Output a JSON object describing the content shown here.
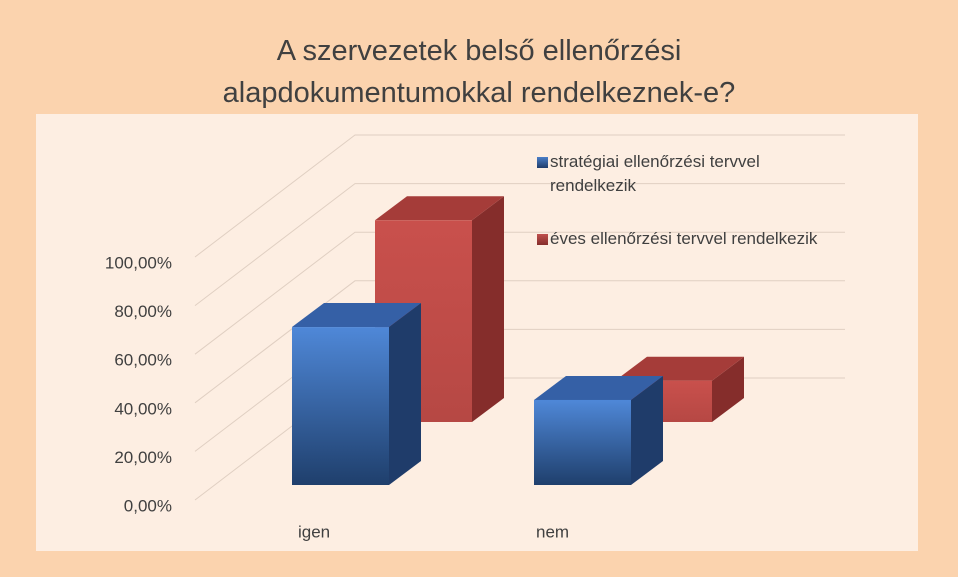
{
  "chart_data": {
    "type": "bar3d",
    "title": "A szervezetek belső ellenőrzési alapdokumentumokkal rendelkeznek-e?",
    "categories": [
      "igen",
      "nem"
    ],
    "series": [
      {
        "name": "stratégiai ellenőrzési tervvel rendelkezik",
        "color": "#4a7ec8",
        "values": [
          65,
          35
        ]
      },
      {
        "name": "éves ellenőrzési tervvel rendelkezik",
        "color": "#c0504d",
        "values": [
          83,
          17
        ]
      }
    ],
    "ylim": [
      0,
      100
    ],
    "yticks": [
      {
        "value": 0,
        "label": "0,00%"
      },
      {
        "value": 20,
        "label": "20,00%"
      },
      {
        "value": 40,
        "label": "40,00%"
      },
      {
        "value": 60,
        "label": "60,00%"
      },
      {
        "value": 80,
        "label": "80,00%"
      },
      {
        "value": 100,
        "label": "100,00%"
      }
    ],
    "grid": true,
    "legend": "top-right"
  }
}
